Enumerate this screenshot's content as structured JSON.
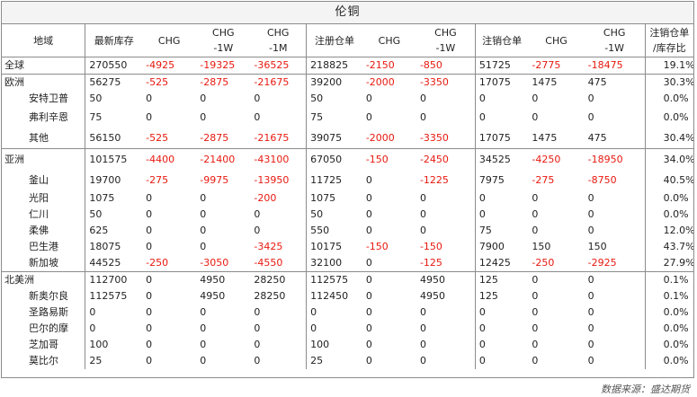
{
  "title": "伦铜",
  "headers": [
    "地域",
    "最新库存",
    "CHG",
    "CHG\n-1W",
    "CHG\n-1M",
    "注册仓单",
    "CHG",
    "CHG\n-1W",
    "注销仓单",
    "CHG",
    "CHG\n-1W",
    "注销仓单\n/库存比"
  ],
  "rows": [
    {
      "cells": [
        "全球",
        "270550",
        "-4925",
        "-19325",
        "-36525",
        "218825",
        "-2150",
        "-850",
        "51725",
        "-2775",
        "-18475",
        "19.1%"
      ],
      "level": "region",
      "group_start": true,
      "tall": false
    },
    {
      "cells": [
        "欧洲",
        "56275",
        "-525",
        "-2875",
        "-21675",
        "39200",
        "-2000",
        "-3350",
        "17075",
        "1475",
        "475",
        "30.3%"
      ],
      "level": "region",
      "group_start": true,
      "tall": false
    },
    {
      "cells": [
        "安特卫普",
        "50",
        "0",
        "0",
        "0",
        "50",
        "0",
        "0",
        "0",
        "0",
        "0",
        "0.0%"
      ],
      "level": "sub",
      "group_start": false,
      "tall": false
    },
    {
      "cells": [
        "弗利辛恩",
        "75",
        "0",
        "0",
        "0",
        "75",
        "0",
        "0",
        "0",
        "0",
        "0",
        "0.0%"
      ],
      "level": "sub",
      "group_start": false,
      "tall": true
    },
    {
      "cells": [
        "其他",
        "56150",
        "-525",
        "-2875",
        "-21675",
        "39075",
        "-2000",
        "-3350",
        "17075",
        "1475",
        "475",
        "30.4%"
      ],
      "level": "sub",
      "group_start": false,
      "tall": true
    },
    {
      "cells": [
        "亚洲",
        "101575",
        "-4400",
        "-21400",
        "-43100",
        "67050",
        "-150",
        "-2450",
        "34525",
        "-4250",
        "-18950",
        "34.0%"
      ],
      "level": "region",
      "group_start": true,
      "tall": true
    },
    {
      "cells": [
        "釜山",
        "19700",
        "-275",
        "-9975",
        "-13950",
        "11725",
        "0",
        "-1225",
        "7975",
        "-275",
        "-8750",
        "40.5%"
      ],
      "level": "sub",
      "group_start": false,
      "tall": true
    },
    {
      "cells": [
        "光阳",
        "1075",
        "0",
        "0",
        "-200",
        "1075",
        "0",
        "0",
        "0",
        "0",
        "0",
        "0.0%"
      ],
      "level": "sub",
      "group_start": false,
      "tall": false
    },
    {
      "cells": [
        "仁川",
        "50",
        "0",
        "0",
        "0",
        "50",
        "0",
        "0",
        "0",
        "0",
        "0",
        "0.0%"
      ],
      "level": "sub",
      "group_start": false,
      "tall": false
    },
    {
      "cells": [
        "柔佛",
        "625",
        "0",
        "0",
        "0",
        "550",
        "0",
        "0",
        "75",
        "0",
        "0",
        "12.0%"
      ],
      "level": "sub",
      "group_start": false,
      "tall": false
    },
    {
      "cells": [
        "巴生港",
        "18075",
        "0",
        "0",
        "-3425",
        "10175",
        "-150",
        "-150",
        "7900",
        "150",
        "150",
        "43.7%"
      ],
      "level": "sub",
      "group_start": false,
      "tall": false
    },
    {
      "cells": [
        "新加坡",
        "44525",
        "-250",
        "-3050",
        "-4550",
        "32100",
        "0",
        "-125",
        "12425",
        "-250",
        "-2925",
        "27.9%"
      ],
      "level": "sub",
      "group_start": false,
      "tall": false
    },
    {
      "cells": [
        "北美洲",
        "112700",
        "0",
        "4950",
        "28250",
        "112575",
        "0",
        "4950",
        "125",
        "0",
        "0",
        "0.1%"
      ],
      "level": "region",
      "group_start": true,
      "tall": false
    },
    {
      "cells": [
        "新奥尔良",
        "112575",
        "0",
        "4950",
        "28250",
        "112450",
        "0",
        "4950",
        "125",
        "0",
        "0",
        "0.1%"
      ],
      "level": "sub",
      "group_start": false,
      "tall": false
    },
    {
      "cells": [
        "圣路易斯",
        "0",
        "0",
        "0",
        "0",
        "0",
        "0",
        "0",
        "0",
        "0",
        "0",
        "0.0%"
      ],
      "level": "sub",
      "group_start": false,
      "tall": false
    },
    {
      "cells": [
        "巴尔的摩",
        "0",
        "0",
        "0",
        "0",
        "0",
        "0",
        "0",
        "0",
        "0",
        "0",
        "0.0%"
      ],
      "level": "sub",
      "group_start": false,
      "tall": false
    },
    {
      "cells": [
        "芝加哥",
        "100",
        "0",
        "0",
        "0",
        "100",
        "0",
        "0",
        "0",
        "0",
        "0",
        "0.0%"
      ],
      "level": "sub",
      "group_start": false,
      "tall": false
    },
    {
      "cells": [
        "莫比尔",
        "25",
        "0",
        "0",
        "0",
        "25",
        "0",
        "0",
        "0",
        "0",
        "0",
        "0.0%"
      ],
      "level": "sub",
      "group_start": false,
      "tall": false
    }
  ],
  "source": "数据来源：盛达期货",
  "colors": {
    "negative": "#e8190f",
    "border": "#8c8c8c"
  }
}
